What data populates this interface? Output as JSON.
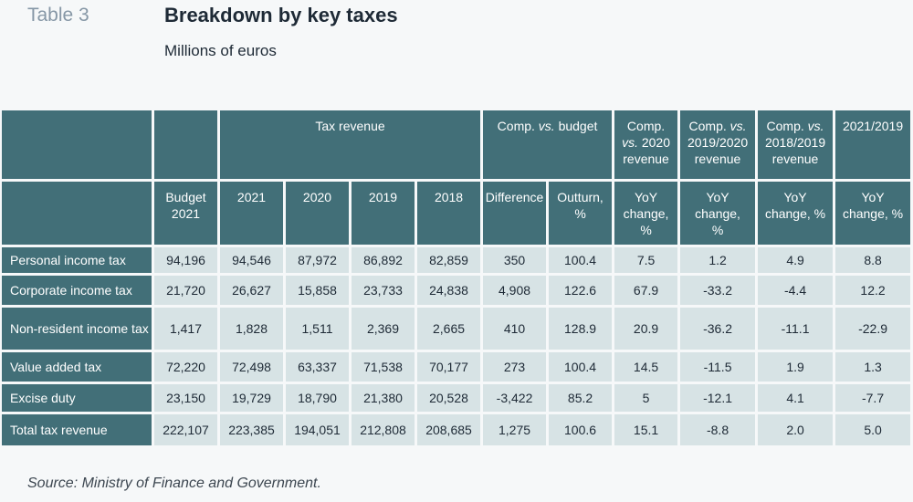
{
  "header": {
    "table_label": "Table 3",
    "title": "Breakdown by key taxes",
    "subtitle": "Millions of euros"
  },
  "table": {
    "group_headers": {
      "tax_revenue": "Tax revenue",
      "comp_budget": "Comp. vs. budget",
      "comp_2020": "Comp. vs. 2020 revenue",
      "comp_2019_2020": "Comp. vs. 2019/2020 revenue",
      "comp_2018_2019": "Comp. vs. 2018/2019 revenue",
      "y2021_2019": "2021/2019"
    },
    "columns": {
      "budget_2021": "Budget 2021",
      "c2021": "2021",
      "c2020": "2020",
      "c2019": "2019",
      "c2018": "2018",
      "difference": "Difference",
      "outturn": "Outturn, %",
      "yoy_2020": "YoY change, %",
      "yoy_2019_2020": "YoY change, %",
      "yoy_2018_2019": "YoY change, %",
      "yoy_2021_2019": "YoY change, %"
    },
    "rows": [
      {
        "label": "Personal income tax",
        "cells": [
          "94,196",
          "94,546",
          "87,972",
          "86,892",
          "82,859",
          "350",
          "100.4",
          "7.5",
          "1.2",
          "4.9",
          "8.8"
        ]
      },
      {
        "label": "Corporate income tax",
        "cells": [
          "21,720",
          "26,627",
          "15,858",
          "23,733",
          "24,838",
          "4,908",
          "122.6",
          "67.9",
          "-33.2",
          "-4.4",
          "12.2"
        ]
      },
      {
        "label": "Non-resident income tax",
        "cells": [
          "1,417",
          "1,828",
          "1,511",
          "2,369",
          "2,665",
          "410",
          "128.9",
          "20.9",
          "-36.2",
          "-11.1",
          "-22.9"
        ]
      },
      {
        "label": "Value added tax",
        "cells": [
          "72,220",
          "72,498",
          "63,337",
          "71,538",
          "70,177",
          "273",
          "100.4",
          "14.5",
          "-11.5",
          "1.9",
          "1.3"
        ]
      },
      {
        "label": "Excise duty",
        "cells": [
          "23,150",
          "19,729",
          "18,790",
          "21,380",
          "20,528",
          "-3,422",
          "85.2",
          "5",
          "-12.1",
          "4.1",
          "-7.7"
        ]
      },
      {
        "label": "Total tax revenue",
        "cells": [
          "222,107",
          "223,385",
          "194,051",
          "212,808",
          "208,685",
          "1,275",
          "100.6",
          "15.1",
          "-8.8",
          "2.0",
          "5.0"
        ]
      }
    ]
  },
  "footer": {
    "source": "Source: Ministry of Finance and Government."
  },
  "colors": {
    "header_bg": "#426f78",
    "cell_bg": "#d7e3e5",
    "page_bg": "#f6f8f9"
  }
}
